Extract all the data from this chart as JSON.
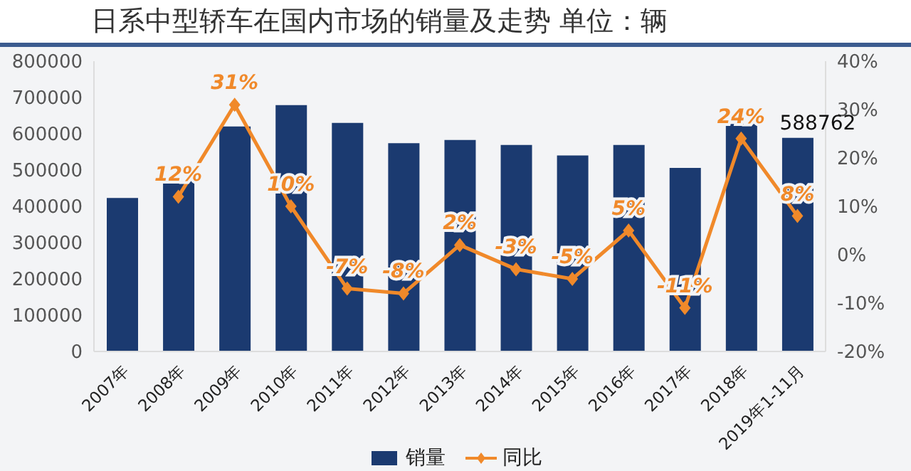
{
  "chart_data": {
    "type": "bar",
    "title": "日系中型轿车在国内市场的销量及走势  单位：辆",
    "categories": [
      "2007年",
      "2008年",
      "2009年",
      "2010年",
      "2011年",
      "2012年",
      "2013年",
      "2014年",
      "2015年",
      "2016年",
      "2017年",
      "2018年",
      "2019年1-11月"
    ],
    "series": [
      {
        "name": "销量",
        "color": "#1b3a70",
        "values": [
          423000,
          471000,
          620000,
          679000,
          630000,
          574000,
          583000,
          569000,
          540000,
          569000,
          506000,
          627000,
          588762
        ],
        "value_labels": [
          null,
          null,
          null,
          null,
          null,
          null,
          null,
          null,
          null,
          null,
          null,
          null,
          "588762"
        ]
      },
      {
        "name": "同比",
        "type": "line",
        "axis": "y2",
        "color": "#f0892a",
        "marker": "diamond",
        "values": [
          null,
          12,
          31,
          10,
          -7,
          -8,
          2,
          -3,
          -5,
          5,
          -11,
          24,
          8
        ],
        "value_labels": [
          null,
          "12%",
          "31%",
          "10%",
          "-7%",
          "-8%",
          "2%",
          "-3%",
          "-5%",
          "5%",
          "-11%",
          "24%",
          "8%"
        ]
      }
    ],
    "ylim": [
      0,
      800000
    ],
    "yticks": [
      0,
      100000,
      200000,
      300000,
      400000,
      500000,
      600000,
      700000,
      800000
    ],
    "y2lim": [
      -20,
      40
    ],
    "y2ticks": [
      {
        "value": -20,
        "label": "-20%"
      },
      {
        "value": -10,
        "label": "-10%"
      },
      {
        "value": 0,
        "label": "0%"
      },
      {
        "value": 10,
        "label": "10%"
      },
      {
        "value": 20,
        "label": "20%"
      },
      {
        "value": 30,
        "label": "30%"
      },
      {
        "value": 40,
        "label": "40%"
      }
    ],
    "grid": false,
    "legend": "bottom"
  }
}
